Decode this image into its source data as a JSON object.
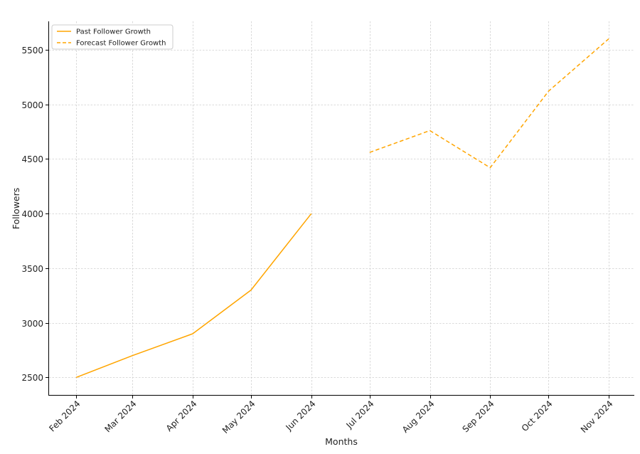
{
  "chart_data": {
    "type": "line",
    "title": "",
    "xlabel": "Months",
    "ylabel": "Followers",
    "x_tick_labels": [
      "Feb 2024",
      "Mar 2024",
      "Apr 2024",
      "May 2024",
      "Jun 2024",
      "Jul 2024",
      "Aug 2024",
      "Sep 2024",
      "Oct 2024",
      "Nov 2024"
    ],
    "y_ticks": [
      2500,
      3000,
      3500,
      4000,
      4500,
      5000,
      5500
    ],
    "ylim": [
      2340,
      5760
    ],
    "grid": true,
    "legend_position": "top-left",
    "series": [
      {
        "name": "Past Follower Growth",
        "style": "solid",
        "color": "#FFA500",
        "x": [
          "2024-01-31",
          "2024-02-29",
          "2024-03-31",
          "2024-04-30",
          "2024-05-31"
        ],
        "y": [
          2500,
          2700,
          2900,
          3300,
          4000
        ]
      },
      {
        "name": "Forecast Follower Growth",
        "style": "dashed",
        "color": "#FFA500",
        "x": [
          "2024-06-30",
          "2024-07-31",
          "2024-08-31",
          "2024-09-30",
          "2024-10-31"
        ],
        "y": [
          4560,
          4760,
          4420,
          5120,
          5600
        ]
      }
    ]
  }
}
